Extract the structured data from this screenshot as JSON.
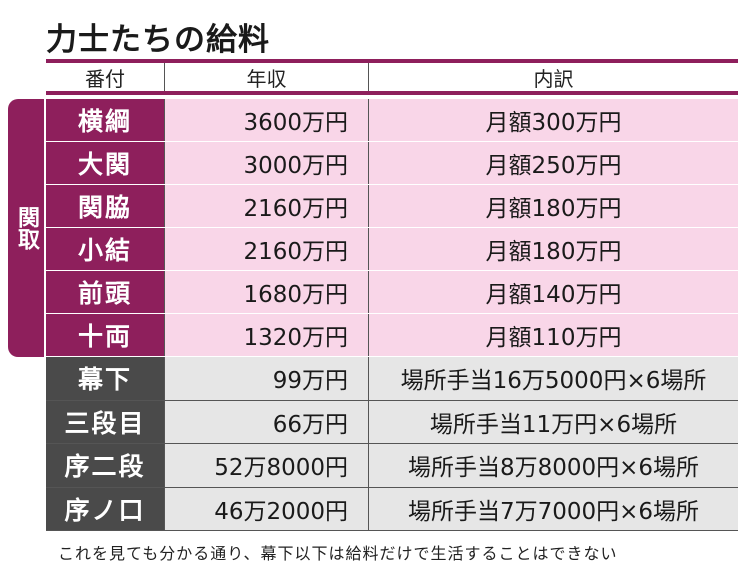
{
  "title": "力士たちの給料",
  "headers": {
    "rank": "番付",
    "income": "年収",
    "detail": "内訳"
  },
  "group_label": "関取",
  "rows": [
    {
      "rank": "横綱",
      "income": "3600万円",
      "detail": "月額300万円",
      "group": "sekitori"
    },
    {
      "rank": "大関",
      "income": "3000万円",
      "detail": "月額250万円",
      "group": "sekitori"
    },
    {
      "rank": "関脇",
      "income": "2160万円",
      "detail": "月額180万円",
      "group": "sekitori"
    },
    {
      "rank": "小結",
      "income": "2160万円",
      "detail": "月額180万円",
      "group": "sekitori"
    },
    {
      "rank": "前頭",
      "income": "1680万円",
      "detail": "月額140万円",
      "group": "sekitori"
    },
    {
      "rank": "十両",
      "income": "1320万円",
      "detail": "月額110万円",
      "group": "sekitori"
    },
    {
      "rank": "幕下",
      "income": "99万円",
      "detail": "場所手当16万5000円×6場所",
      "group": "lower"
    },
    {
      "rank": "三段目",
      "income": "66万円",
      "detail": "場所手当11万円×6場所",
      "group": "lower"
    },
    {
      "rank": "序二段",
      "income": "52万8000円",
      "detail": "場所手当8万8000円×6場所",
      "group": "lower"
    },
    {
      "rank": "序ノ口",
      "income": "46万2000円",
      "detail": "場所手当7万7000円×6場所",
      "group": "lower"
    }
  ],
  "footnote": "これを見ても分かる通り、幕下以下は給料だけで生活することはできない",
  "colors": {
    "sekitori_accent": "#8e1f5c",
    "sekitori_fill": "#f9d6e8",
    "lower_accent": "#4a4a4a",
    "lower_fill": "#e6e6e6"
  }
}
